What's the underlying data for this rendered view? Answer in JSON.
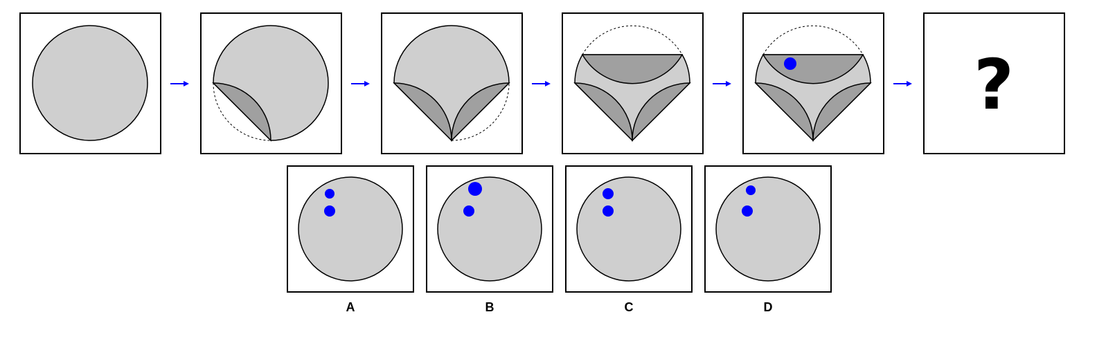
{
  "colors": {
    "paper": "#cfcfcf",
    "fold": "#a0a0a0",
    "outline": "#000000",
    "arrow": "#0000ff",
    "hole": "#0000ff",
    "frame_bg": "#ffffff"
  },
  "sequence": {
    "question_mark": "?"
  },
  "options": [
    {
      "label": "A"
    },
    {
      "label": "B"
    },
    {
      "label": "C"
    },
    {
      "label": "D"
    }
  ]
}
